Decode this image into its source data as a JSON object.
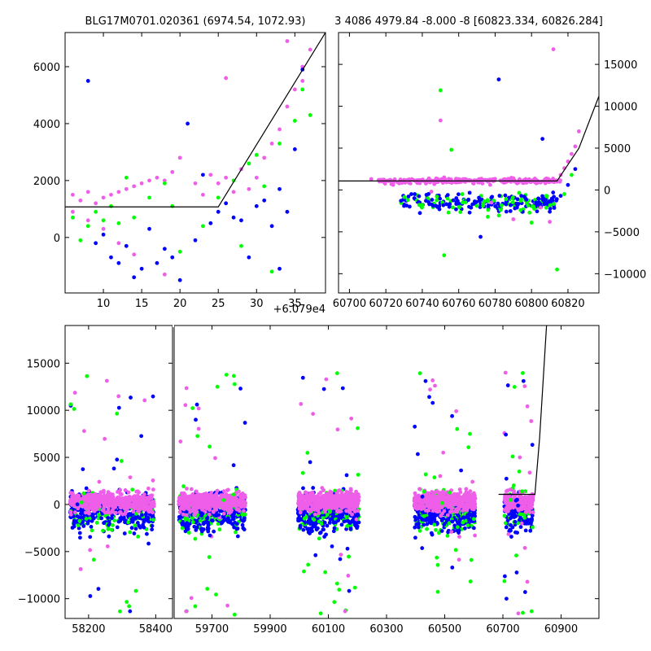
{
  "chart_data": [
    {
      "panel": "top-left",
      "type": "scatter",
      "title": "BLG17M0701.020361 (6974.54, 1072.93)",
      "offset_label": "+6.079e4",
      "xlim": [
        5,
        39
      ],
      "ylim": [
        -1950,
        7200
      ],
      "xticks": [
        10,
        15,
        20,
        25,
        30,
        35
      ],
      "yticks": [
        0,
        2000,
        4000,
        6000
      ],
      "ytick_side": "left",
      "colors": {
        "green": "#00ff00",
        "blue": "#0000ff",
        "magenta": "#ee5ee8"
      },
      "model_line": {
        "x": [
          5,
          25,
          39
        ],
        "y": [
          1073,
          1073,
          7200
        ]
      },
      "series": [
        {
          "color_key": "magenta",
          "points": [
            [
              6,
              1500
            ],
            [
              7,
              1300
            ],
            [
              8,
              1600
            ],
            [
              9,
              1200
            ],
            [
              10,
              1400
            ],
            [
              11,
              1500
            ],
            [
              12,
              1600
            ],
            [
              13,
              1700
            ],
            [
              14,
              1800
            ],
            [
              15,
              1900
            ],
            [
              16,
              2000
            ],
            [
              17,
              2100
            ],
            [
              18,
              2000
            ],
            [
              19,
              2300
            ],
            [
              20,
              2800
            ],
            [
              22,
              1900
            ],
            [
              23,
              1500
            ],
            [
              24,
              2200
            ],
            [
              25,
              1900
            ],
            [
              26,
              2100
            ],
            [
              27,
              1600
            ],
            [
              28,
              2400
            ],
            [
              29,
              1700
            ],
            [
              30,
              2100
            ],
            [
              31,
              2800
            ],
            [
              32,
              3300
            ],
            [
              33,
              3800
            ],
            [
              34,
              4600
            ],
            [
              35,
              5200
            ],
            [
              36,
              6000
            ],
            [
              37,
              6600
            ],
            [
              6,
              900
            ],
            [
              8,
              600
            ],
            [
              10,
              300
            ],
            [
              12,
              -200
            ],
            [
              14,
              -600
            ],
            [
              18,
              -1300
            ],
            [
              26,
              5600
            ],
            [
              34,
              6900
            ],
            [
              36,
              5500
            ]
          ]
        },
        {
          "color_key": "green",
          "points": [
            [
              6,
              700
            ],
            [
              7,
              -100
            ],
            [
              8,
              400
            ],
            [
              9,
              900
            ],
            [
              10,
              600
            ],
            [
              11,
              1100
            ],
            [
              12,
              500
            ],
            [
              13,
              2100
            ],
            [
              14,
              700
            ],
            [
              16,
              1400
            ],
            [
              18,
              1900
            ],
            [
              19,
              1100
            ],
            [
              20,
              -500
            ],
            [
              23,
              400
            ],
            [
              25,
              1400
            ],
            [
              27,
              2000
            ],
            [
              28,
              -300
            ],
            [
              29,
              2600
            ],
            [
              30,
              2900
            ],
            [
              31,
              1800
            ],
            [
              32,
              -1200
            ],
            [
              33,
              3300
            ],
            [
              35,
              4100
            ],
            [
              36,
              5200
            ],
            [
              37,
              4300
            ]
          ]
        },
        {
          "color_key": "blue",
          "points": [
            [
              8,
              5500
            ],
            [
              9,
              -200
            ],
            [
              10,
              100
            ],
            [
              11,
              -700
            ],
            [
              12,
              -900
            ],
            [
              13,
              -300
            ],
            [
              14,
              -1400
            ],
            [
              15,
              -1100
            ],
            [
              16,
              300
            ],
            [
              17,
              -900
            ],
            [
              18,
              -400
            ],
            [
              19,
              -700
            ],
            [
              20,
              -1500
            ],
            [
              21,
              4000
            ],
            [
              22,
              -100
            ],
            [
              23,
              2200
            ],
            [
              24,
              500
            ],
            [
              25,
              900
            ],
            [
              26,
              1200
            ],
            [
              27,
              700
            ],
            [
              28,
              600
            ],
            [
              29,
              -700
            ],
            [
              30,
              1100
            ],
            [
              31,
              1300
            ],
            [
              32,
              400
            ],
            [
              33,
              1700
            ],
            [
              34,
              900
            ],
            [
              35,
              3100
            ],
            [
              36,
              5900
            ],
            [
              33,
              -1100
            ]
          ]
        }
      ]
    },
    {
      "panel": "top-right",
      "type": "scatter",
      "title": "3 4086 4979.84 -8.000 -8 [60823.334, 60826.284]",
      "xlim": [
        60694,
        60837
      ],
      "ylim": [
        -12300,
        18800
      ],
      "xticks": [
        60700,
        60720,
        60740,
        60760,
        60780,
        60800,
        60820
      ],
      "yticks": [
        -10000,
        -5000,
        0,
        5000,
        10000,
        15000
      ],
      "ytick_side": "right",
      "model_line": {
        "x": [
          60694,
          60814,
          60826,
          60837
        ],
        "y": [
          1073,
          1073,
          4980,
          11200
        ]
      },
      "series": [
        {
          "color_key": "magenta",
          "points": [
            [
              60712,
              1300
            ],
            [
              60718,
              1000
            ],
            [
              60724,
              600
            ],
            [
              60730,
              1200
            ],
            [
              60738,
              900
            ],
            [
              60746,
              1100
            ],
            [
              60752,
              1500
            ],
            [
              60760,
              1300
            ],
            [
              60768,
              900
            ],
            [
              60776,
              1200
            ],
            [
              60784,
              1000
            ],
            [
              60790,
              1400
            ],
            [
              60796,
              1200
            ],
            [
              60802,
              900
            ],
            [
              60808,
              1100
            ],
            [
              60812,
              16800
            ],
            [
              60816,
              1800
            ],
            [
              60818,
              2600
            ],
            [
              60820,
              3400
            ],
            [
              60822,
              4300
            ],
            [
              60824,
              5200
            ],
            [
              60826,
              7000
            ],
            [
              60750,
              8300
            ],
            [
              60745,
              -200
            ],
            [
              60790,
              -3500
            ],
            [
              60805,
              -2100
            ],
            [
              60778,
              -1500
            ],
            [
              60810,
              -3800
            ]
          ]
        },
        {
          "color_key": "green",
          "points": [
            [
              60732,
              -1200
            ],
            [
              60740,
              -1800
            ],
            [
              60748,
              -800
            ],
            [
              60750,
              11900
            ],
            [
              60752,
              -7800
            ],
            [
              60756,
              4800
            ],
            [
              60762,
              -500
            ],
            [
              60770,
              -1900
            ],
            [
              60776,
              -3200
            ],
            [
              60786,
              -1100
            ],
            [
              60794,
              -2400
            ],
            [
              60800,
              -3900
            ],
            [
              60808,
              -700
            ],
            [
              60814,
              -9500
            ],
            [
              60818,
              -500
            ],
            [
              60822,
              1800
            ]
          ]
        },
        {
          "color_key": "blue",
          "points": [
            [
              60734,
              -500
            ],
            [
              60742,
              -1300
            ],
            [
              60746,
              -1900
            ],
            [
              60754,
              -600
            ],
            [
              60760,
              -1600
            ],
            [
              60766,
              -2700
            ],
            [
              60772,
              -5600
            ],
            [
              60778,
              -900
            ],
            [
              60782,
              13200
            ],
            [
              60786,
              -1700
            ],
            [
              60792,
              -2100
            ],
            [
              60796,
              -800
            ],
            [
              60804,
              -1500
            ],
            [
              60810,
              -2600
            ],
            [
              60816,
              -700
            ],
            [
              60820,
              600
            ],
            [
              60824,
              2500
            ],
            [
              60806,
              6100
            ]
          ]
        }
      ]
    },
    {
      "panel": "bottom",
      "type": "scatter",
      "xlim_segments": [
        [
          58130,
          58450
        ],
        [
          59570,
          61030
        ]
      ],
      "ylim": [
        -12100,
        19000
      ],
      "xticks": [
        58200,
        58400,
        59700,
        59900,
        60100,
        60300,
        60500,
        60700,
        60900
      ],
      "yticks": [
        -10000,
        -5000,
        0,
        5000,
        10000,
        15000
      ],
      "ytick_side": "left",
      "model_line": {
        "x": [
          60685,
          60810,
          60826,
          60850
        ],
        "y": [
          1073,
          1073,
          7000,
          19000
        ]
      },
      "seasons": [
        [
          58145,
          58395
        ],
        [
          59585,
          59815
        ],
        [
          59995,
          60205
        ],
        [
          60395,
          60605
        ],
        [
          60705,
          60805
        ]
      ]
    }
  ]
}
